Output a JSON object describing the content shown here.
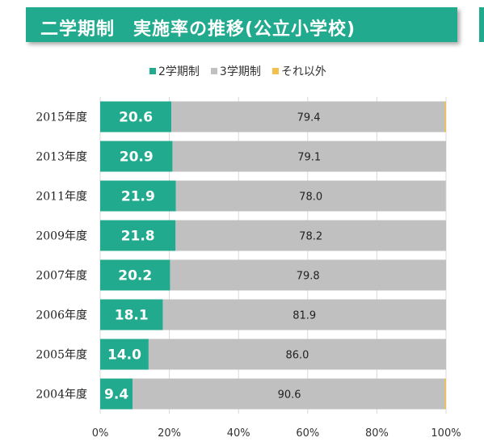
{
  "title": "二学期制　実施率の推移(公立小学校)",
  "colors": {
    "accent": "#22aa8e",
    "grey": "#c0c0c0",
    "other": "#f3c04b"
  },
  "chart_data": {
    "type": "bar",
    "orientation": "horizontal",
    "stacked": true,
    "categories": [
      "2015年度",
      "2013年度",
      "2011年度",
      "2009年度",
      "2007年度",
      "2006年度",
      "2005年度",
      "2004年度"
    ],
    "series": [
      {
        "name": "2学期制",
        "color": "#22aa8e",
        "values": [
          20.6,
          20.9,
          21.9,
          21.8,
          20.2,
          18.1,
          14.0,
          9.4
        ]
      },
      {
        "name": "3学期制",
        "color": "#c0c0c0",
        "values": [
          79.4,
          79.1,
          78.0,
          78.2,
          79.8,
          81.9,
          86.0,
          90.6
        ]
      },
      {
        "name": "それ以外",
        "color": "#f3c04b",
        "values": [
          0.0,
          0,
          0,
          0,
          0,
          0,
          0,
          0.0
        ]
      }
    ],
    "x_ticks": [
      "0%",
      "20%",
      "40%",
      "60%",
      "80%",
      "100%"
    ],
    "xlim": [
      0,
      100
    ],
    "legend_position": "top",
    "grid": true
  }
}
